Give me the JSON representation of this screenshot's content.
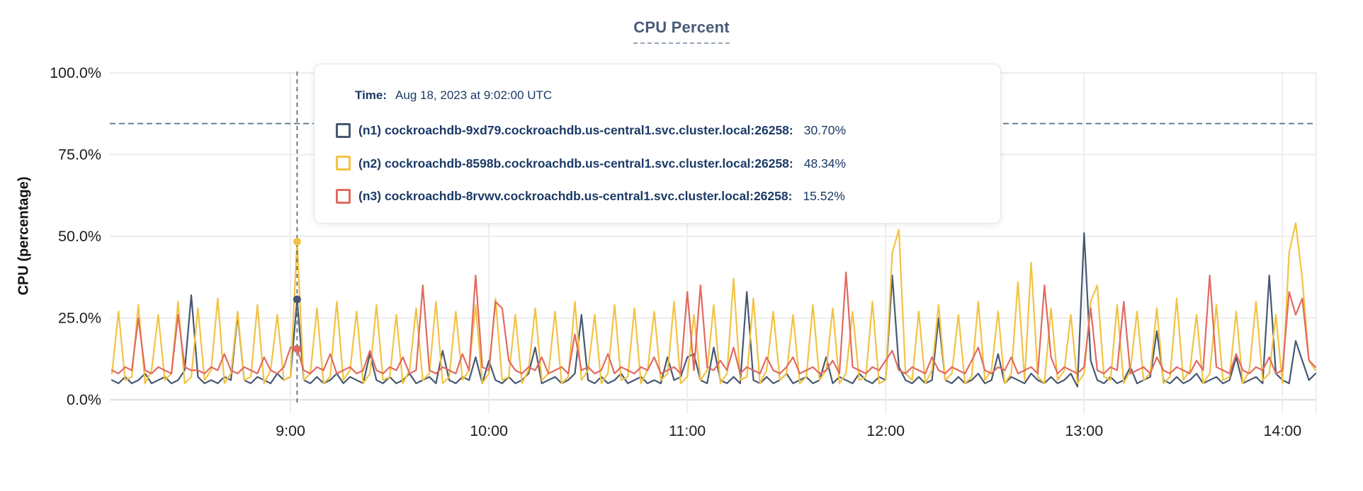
{
  "title": "CPU Percent",
  "y_axis_label": "CPU (percentage)",
  "tooltip": {
    "time_label": "Time:",
    "time_value": "Aug 18, 2023 at 9:02:00 UTC",
    "rows": [
      {
        "name": "(n1) cockroachdb-9xd79.cockroachdb.us-central1.svc.cluster.local:26258:",
        "value": "30.70%",
        "color": "#475872"
      },
      {
        "name": "(n2) cockroachdb-8598b.cockroachdb.us-central1.svc.cluster.local:26258:",
        "value": "48.34%",
        "color": "#F2C343"
      },
      {
        "name": "(n3) cockroachdb-8rvwv.cockroachdb.us-central1.svc.cluster.local:26258:",
        "value": "15.52%",
        "color": "#E16A60"
      }
    ]
  },
  "colors": {
    "title": "#4A5A78",
    "grid": "#ECECEC",
    "dashed_guides": "#567183",
    "tooltip_text": "#1B3A66",
    "n1": "#475872",
    "n2": "#F2C343",
    "n3": "#E16A60"
  },
  "chart_data": {
    "type": "line",
    "title": "CPU Percent",
    "xlabel": "",
    "ylabel": "CPU (percentage)",
    "ylim": [
      0,
      100
    ],
    "grid": true,
    "y_ticks": [
      {
        "label": "0.0%",
        "value": 0
      },
      {
        "label": "25.0%",
        "value": 25
      },
      {
        "label": "50.0%",
        "value": 50
      },
      {
        "label": "75.0%",
        "value": 75
      },
      {
        "label": "100.0%",
        "value": 100
      }
    ],
    "x_ticks": [
      {
        "label": "9:00",
        "minutes": 540
      },
      {
        "label": "10:00",
        "minutes": 600
      },
      {
        "label": "11:00",
        "minutes": 660
      },
      {
        "label": "12:00",
        "minutes": 720
      },
      {
        "label": "13:00",
        "minutes": 780
      },
      {
        "label": "14:00",
        "minutes": 840
      }
    ],
    "x_range_minutes": [
      486,
      850
    ],
    "x_step_minutes": 2,
    "threshold_percent": 84.5,
    "hover_index": 28,
    "hover_time_minutes": 542,
    "series": [
      {
        "name": "(n1) cockroachdb-9xd79.cockroachdb.us-central1.svc.cluster.local:26258",
        "color": "#475872",
        "hover_value": 30.7,
        "values": [
          6,
          5,
          7,
          5,
          6,
          8,
          5,
          6,
          7,
          5,
          6,
          9,
          32,
          7,
          5,
          6,
          5,
          7,
          6,
          26,
          6,
          5,
          7,
          6,
          5,
          8,
          6,
          7,
          30.7,
          6,
          5,
          7,
          5,
          6,
          8,
          5,
          7,
          6,
          5,
          14,
          6,
          5,
          7,
          5,
          6,
          8,
          5,
          6,
          7,
          5,
          15,
          6,
          5,
          7,
          6,
          13,
          5,
          12,
          6,
          5,
          7,
          5,
          6,
          8,
          16,
          5,
          6,
          7,
          5,
          6,
          8,
          26,
          6,
          5,
          7,
          5,
          6,
          8,
          5,
          6,
          7,
          5,
          6,
          5,
          13,
          6,
          7,
          13,
          14,
          6,
          5,
          16,
          6,
          5,
          7,
          5,
          33,
          6,
          5,
          7,
          5,
          6,
          8,
          5,
          6,
          7,
          5,
          6,
          13,
          5,
          7,
          6,
          5,
          8,
          6,
          5,
          7,
          6,
          38,
          10,
          6,
          5,
          7,
          5,
          6,
          25,
          6,
          5,
          7,
          5,
          6,
          8,
          5,
          6,
          14,
          5,
          7,
          6,
          5,
          8,
          6,
          5,
          7,
          5,
          6,
          8,
          4,
          51,
          12,
          6,
          5,
          7,
          5,
          6,
          10,
          5,
          6,
          7,
          21,
          6,
          5,
          7,
          5,
          6,
          8,
          5,
          6,
          7,
          5,
          6,
          13,
          5,
          6,
          7,
          5,
          38,
          8,
          6,
          5,
          18,
          12,
          6,
          8
        ]
      },
      {
        "name": "(n2) cockroachdb-8598b.cockroachdb.us-central1.svc.cluster.local:26258",
        "color": "#F2C343",
        "hover_value": 48.34,
        "values": [
          8,
          27,
          6,
          7,
          29,
          5,
          9,
          26,
          6,
          8,
          30,
          5,
          7,
          28,
          6,
          9,
          31,
          5,
          8,
          27,
          6,
          7,
          29,
          5,
          9,
          26,
          6,
          7,
          48.34,
          6,
          8,
          28,
          5,
          7,
          30,
          6,
          9,
          27,
          5,
          8,
          29,
          6,
          7,
          26,
          5,
          9,
          28,
          6,
          8,
          30,
          5,
          7,
          27,
          6,
          9,
          29,
          5,
          8,
          31,
          6,
          7,
          26,
          5,
          9,
          28,
          6,
          8,
          27,
          5,
          7,
          30,
          6,
          9,
          26,
          5,
          8,
          29,
          6,
          7,
          28,
          5,
          9,
          27,
          6,
          8,
          30,
          5,
          7,
          26,
          6,
          9,
          29,
          5,
          8,
          37,
          6,
          7,
          31,
          5,
          9,
          27,
          6,
          8,
          26,
          5,
          7,
          29,
          6,
          9,
          28,
          5,
          8,
          27,
          6,
          7,
          30,
          5,
          6,
          45,
          52,
          8,
          6,
          27,
          5,
          9,
          29,
          6,
          8,
          26,
          5,
          7,
          30,
          6,
          9,
          27,
          5,
          8,
          36,
          6,
          42,
          7,
          5,
          28,
          6,
          9,
          26,
          5,
          8,
          30,
          35,
          7,
          6,
          29,
          5,
          9,
          27,
          6,
          8,
          28,
          5,
          7,
          31,
          6,
          9,
          26,
          5,
          8,
          29,
          6,
          7,
          27,
          5,
          9,
          30,
          6,
          8,
          26,
          5,
          45,
          54,
          37,
          12,
          9
        ]
      },
      {
        "name": "(n3) cockroachdb-8rvwv.cockroachdb.us-central1.svc.cluster.local:26258",
        "color": "#E16A60",
        "hover_value": 15.52,
        "values": [
          9,
          8,
          10,
          9,
          25,
          9,
          8,
          10,
          9,
          8,
          26,
          10,
          9,
          9,
          8,
          10,
          9,
          14,
          9,
          8,
          10,
          9,
          8,
          13,
          9,
          8,
          10,
          16,
          15.52,
          9,
          8,
          10,
          9,
          14,
          8,
          9,
          10,
          8,
          9,
          15,
          9,
          8,
          10,
          9,
          13,
          8,
          9,
          35,
          9,
          8,
          10,
          9,
          8,
          14,
          9,
          38,
          10,
          9,
          30,
          28,
          12,
          9,
          8,
          10,
          9,
          13,
          8,
          9,
          10,
          8,
          20,
          9,
          10,
          8,
          9,
          14,
          8,
          10,
          9,
          8,
          10,
          9,
          13,
          8,
          9,
          10,
          8,
          33,
          9,
          35,
          10,
          9,
          12,
          9,
          16,
          8,
          10,
          9,
          8,
          13,
          9,
          8,
          10,
          13,
          8,
          9,
          10,
          8,
          9,
          12,
          8,
          39,
          10,
          9,
          8,
          10,
          9,
          12,
          15,
          9,
          8,
          10,
          9,
          8,
          13,
          9,
          8,
          10,
          9,
          8,
          12,
          16,
          9,
          8,
          10,
          9,
          13,
          8,
          9,
          10,
          8,
          35,
          13,
          8,
          10,
          9,
          8,
          10,
          28,
          9,
          8,
          10,
          9,
          30,
          8,
          9,
          10,
          8,
          13,
          9,
          8,
          10,
          9,
          8,
          12,
          9,
          38,
          10,
          9,
          8,
          14,
          9,
          8,
          10,
          9,
          13,
          8,
          9,
          33,
          26,
          31,
          12,
          10
        ]
      }
    ]
  }
}
